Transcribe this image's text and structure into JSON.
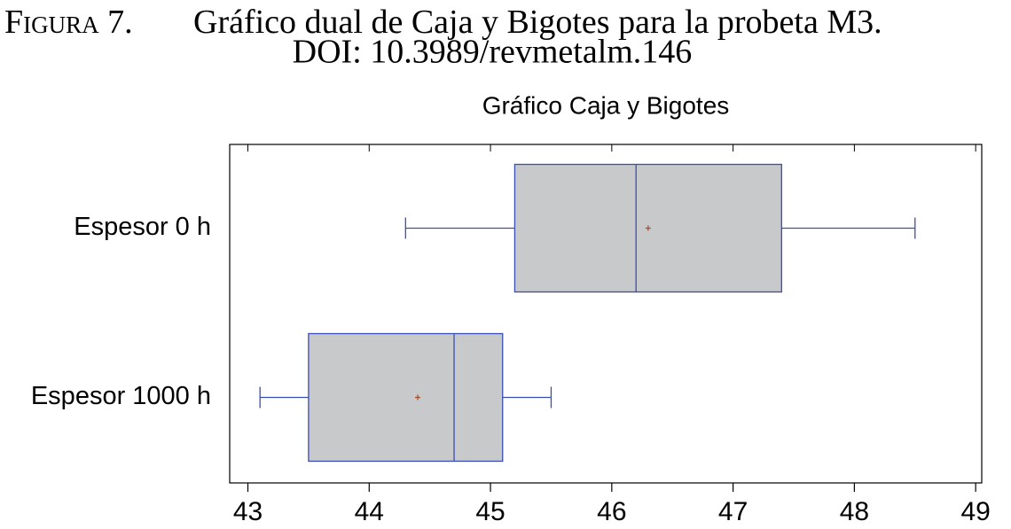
{
  "caption": {
    "label": "Figura 7.",
    "text": "Gráfico dual de Caja y Bigotes para la probeta M3.",
    "doi": "DOI: 10.3989/revmetalm.146"
  },
  "chart_data": {
    "type": "box",
    "title": "Gráfico Caja y Bigotes",
    "categories": [
      "Espesor 0 h",
      "Espesor 1000 h"
    ],
    "boxes": [
      {
        "min": 44.3,
        "q1": 45.2,
        "median": 46.2,
        "q3": 47.4,
        "max": 48.5,
        "mean": 46.3
      },
      {
        "min": 43.1,
        "q1": 43.5,
        "median": 44.7,
        "q3": 45.1,
        "max": 45.5,
        "mean": 44.4
      }
    ],
    "box_color": "#c8c9cb",
    "line_color": "#3a4fb0",
    "mean_color": "#a0522d",
    "xlim": [
      42.85,
      49.05
    ],
    "xticks": [
      43,
      44,
      45,
      46,
      47,
      48,
      49
    ]
  }
}
